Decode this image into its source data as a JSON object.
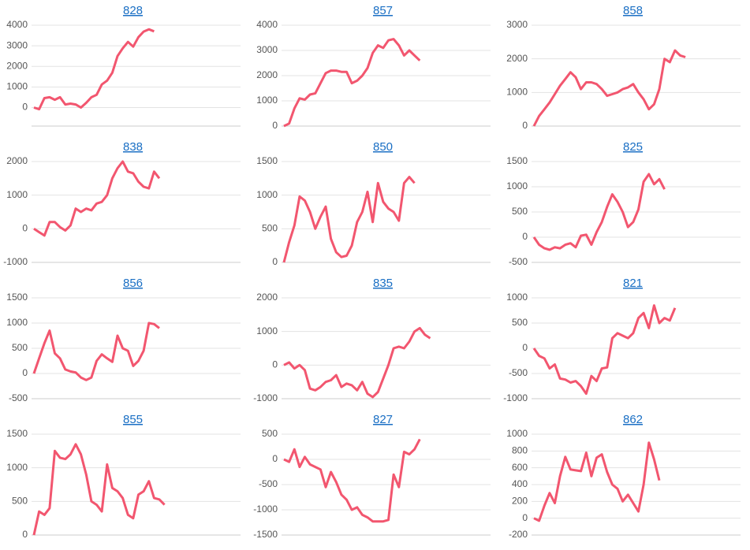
{
  "chart_data": [
    {
      "type": "line",
      "title": "828",
      "color": "#f2566f",
      "ylim": [
        -900,
        4000
      ],
      "yticks": [
        0,
        1000,
        2000,
        3000,
        4000
      ],
      "grid": true,
      "values": [
        0,
        -80,
        460,
        500,
        380,
        500,
        150,
        190,
        150,
        0,
        230,
        500,
        620,
        1120,
        1310,
        1690,
        2500,
        2880,
        3190,
        2960,
        3420,
        3690,
        3800,
        3700
      ]
    },
    {
      "type": "line",
      "title": "857",
      "color": "#f2566f",
      "ylim": [
        0,
        4000
      ],
      "yticks": [
        0,
        1000,
        2000,
        3000,
        4000
      ],
      "grid": true,
      "values": [
        0,
        100,
        700,
        1100,
        1050,
        1250,
        1300,
        1700,
        2100,
        2200,
        2200,
        2150,
        2150,
        1700,
        1800,
        2000,
        2300,
        2900,
        3200,
        3100,
        3400,
        3450,
        3200,
        2800,
        3000,
        2800,
        2600
      ]
    },
    {
      "type": "line",
      "title": "858",
      "color": "#f2566f",
      "ylim": [
        0,
        3000
      ],
      "yticks": [
        0,
        1000,
        2000,
        3000
      ],
      "grid": true,
      "values": [
        0,
        300,
        500,
        700,
        950,
        1200,
        1400,
        1600,
        1450,
        1100,
        1300,
        1300,
        1250,
        1100,
        900,
        950,
        1000,
        1100,
        1150,
        1250,
        1000,
        800,
        500,
        650,
        1100,
        2000,
        1900,
        2250,
        2100,
        2050
      ]
    },
    {
      "type": "line",
      "title": "838",
      "color": "#f2566f",
      "ylim": [
        -1000,
        2000
      ],
      "yticks": [
        -1000,
        0,
        1000,
        2000
      ],
      "grid": true,
      "values": [
        0,
        -100,
        -200,
        200,
        200,
        50,
        -50,
        100,
        600,
        500,
        600,
        550,
        750,
        800,
        1000,
        1500,
        1800,
        2000,
        1700,
        1650,
        1400,
        1250,
        1200,
        1700,
        1500
      ]
    },
    {
      "type": "line",
      "title": "850",
      "color": "#f2566f",
      "ylim": [
        0,
        1500
      ],
      "yticks": [
        0,
        500,
        1000,
        1500
      ],
      "grid": true,
      "values": [
        0,
        300,
        550,
        980,
        920,
        750,
        500,
        680,
        830,
        350,
        150,
        80,
        100,
        250,
        600,
        750,
        1050,
        600,
        1180,
        900,
        800,
        750,
        620,
        1180,
        1270,
        1180
      ]
    },
    {
      "type": "line",
      "title": "825",
      "color": "#f2566f",
      "ylim": [
        -500,
        1500
      ],
      "yticks": [
        -500,
        0,
        500,
        1000,
        1500
      ],
      "grid": true,
      "values": [
        0,
        -150,
        -220,
        -250,
        -200,
        -220,
        -150,
        -120,
        -200,
        30,
        50,
        -150,
        100,
        300,
        600,
        850,
        700,
        500,
        200,
        300,
        550,
        1100,
        1250,
        1050,
        1150,
        950
      ]
    },
    {
      "type": "line",
      "title": "856",
      "color": "#f2566f",
      "ylim": [
        -500,
        1500
      ],
      "yticks": [
        -500,
        0,
        500,
        1000,
        1500
      ],
      "grid": true,
      "values": [
        0,
        300,
        600,
        850,
        400,
        300,
        80,
        40,
        20,
        -80,
        -130,
        -80,
        250,
        380,
        300,
        230,
        750,
        500,
        450,
        150,
        250,
        450,
        1000,
        980,
        900
      ]
    },
    {
      "type": "line",
      "title": "835",
      "color": "#f2566f",
      "ylim": [
        -1000,
        2000
      ],
      "yticks": [
        -1000,
        0,
        1000,
        2000
      ],
      "grid": true,
      "values": [
        0,
        80,
        -100,
        0,
        -150,
        -700,
        -750,
        -650,
        -500,
        -450,
        -300,
        -650,
        -550,
        -600,
        -750,
        -500,
        -850,
        -950,
        -800,
        -400,
        0,
        500,
        550,
        500,
        700,
        1000,
        1100,
        900,
        800
      ]
    },
    {
      "type": "line",
      "title": "821",
      "color": "#f2566f",
      "ylim": [
        -1000,
        1000
      ],
      "yticks": [
        -1000,
        -500,
        0,
        500,
        1000
      ],
      "grid": true,
      "values": [
        0,
        -150,
        -200,
        -400,
        -320,
        -600,
        -620,
        -680,
        -650,
        -750,
        -900,
        -550,
        -650,
        -400,
        -380,
        200,
        300,
        250,
        200,
        300,
        600,
        700,
        400,
        850,
        500,
        600,
        550,
        800
      ]
    },
    {
      "type": "line",
      "title": "855",
      "color": "#f2566f",
      "ylim": [
        0,
        1500
      ],
      "yticks": [
        0,
        500,
        1000,
        1500
      ],
      "grid": true,
      "values": [
        0,
        350,
        300,
        400,
        1250,
        1150,
        1130,
        1200,
        1350,
        1200,
        900,
        500,
        450,
        350,
        1050,
        700,
        650,
        550,
        300,
        250,
        600,
        650,
        800,
        550,
        530,
        450
      ]
    },
    {
      "type": "line",
      "title": "827",
      "color": "#f2566f",
      "ylim": [
        -1500,
        500
      ],
      "yticks": [
        -1500,
        -1000,
        -500,
        0,
        500
      ],
      "grid": true,
      "values": [
        0,
        -50,
        200,
        -150,
        50,
        -100,
        -150,
        -200,
        -550,
        -250,
        -450,
        -700,
        -800,
        -1000,
        -950,
        -1100,
        -1150,
        -1230,
        -1230,
        -1230,
        -1200,
        -300,
        -550,
        150,
        100,
        200,
        400
      ]
    },
    {
      "type": "line",
      "title": "862",
      "color": "#f2566f",
      "ylim": [
        -200,
        1000
      ],
      "yticks": [
        -200,
        0,
        200,
        400,
        600,
        800,
        1000
      ],
      "grid": true,
      "values": [
        0,
        -30,
        150,
        300,
        180,
        500,
        730,
        580,
        570,
        560,
        780,
        500,
        720,
        760,
        550,
        400,
        350,
        200,
        280,
        180,
        80,
        400,
        900,
        700,
        450
      ]
    }
  ]
}
